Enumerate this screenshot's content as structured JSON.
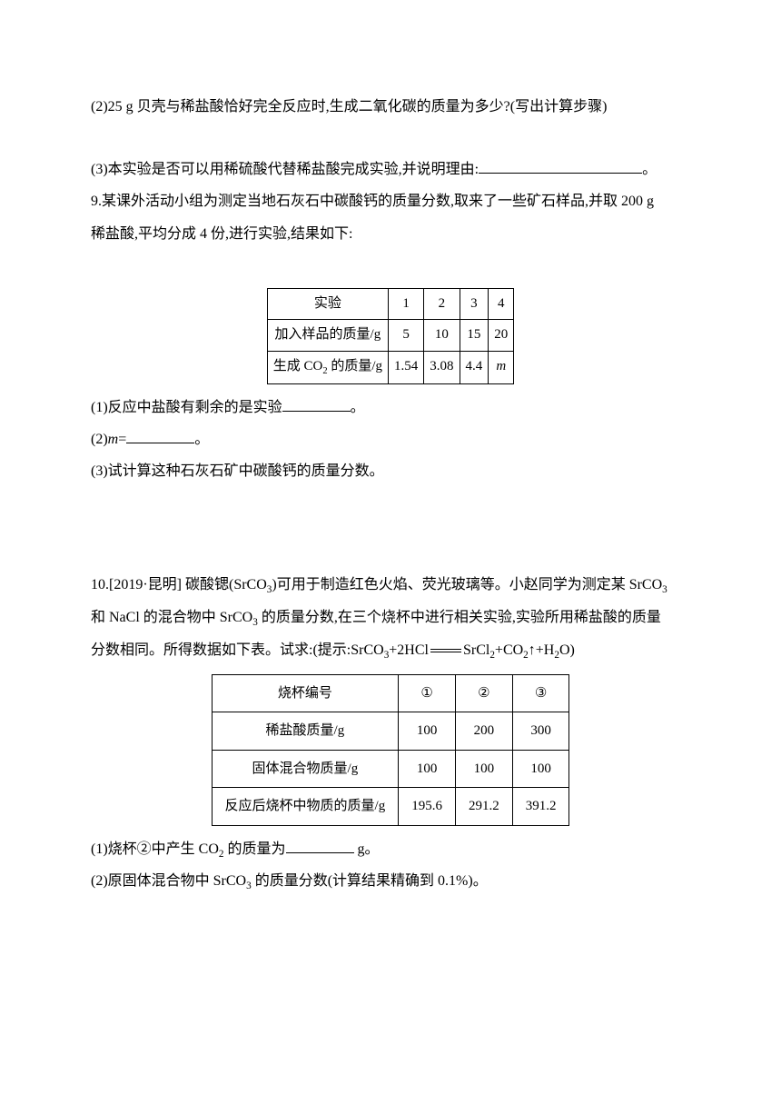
{
  "q8": {
    "p2": "(2)25 g 贝壳与稀盐酸恰好完全反应时,生成二氧化碳的质量为多少?(写出计算步骤)",
    "p3_a": "(3)本实验是否可以用稀硫酸代替稀盐酸完成实验,并说明理由:",
    "p3_b": "。"
  },
  "q9": {
    "intro_a": "9.某课外活动小组为测定当地石灰石中碳酸钙的质量分数,取来了一些矿石样品,并取 200 g",
    "intro_b": "稀盐酸,平均分成 4 份,进行实验,结果如下:",
    "table": {
      "r1": [
        "实验",
        "1",
        "2",
        "3",
        "4"
      ],
      "r2": [
        "加入样品的质量/g",
        "5",
        "10",
        "15",
        "20"
      ],
      "r3_label": "生成 CO",
      "r3_label2": " 的质量/g",
      "r3": [
        "1.54",
        "3.08",
        "4.4"
      ],
      "r3_m": "m"
    },
    "p1_a": "(1)反应中盐酸有剩余的是实验",
    "p1_b": "。",
    "p2_a": "(2)",
    "p2_m": "m",
    "p2_b": "=",
    "p2_c": "。",
    "p3": "(3)试计算这种石灰石矿中碳酸钙的质量分数。"
  },
  "q10": {
    "line1_a": "10.[2019·昆明]  碳酸锶(SrCO",
    "line1_b": ")可用于制造红色火焰、荧光玻璃等。小赵同学为测定某 SrCO",
    "line2_a": "和 NaCl 的混合物中 SrCO",
    "line2_b": " 的质量分数,在三个烧杯中进行相关实验,实验所用稀盐酸的质量",
    "line3_a": "分数相同。所得数据如下表。试求:(提示:SrCO",
    "line3_b": "+2HCl",
    "line3_c": "SrCl",
    "line3_d": "+CO",
    "line3_e": "↑+H",
    "line3_f": "O)",
    "table": {
      "h": [
        "烧杯编号",
        "①",
        "②",
        "③"
      ],
      "r1": [
        "稀盐酸质量/g",
        "100",
        "200",
        "300"
      ],
      "r2": [
        "固体混合物质量/g",
        "100",
        "100",
        "100"
      ],
      "r3": [
        "反应后烧杯中物质的质量/g",
        "195.6",
        "291.2",
        "391.2"
      ]
    },
    "p1_a": "(1)烧杯②中产生 CO",
    "p1_b": " 的质量为",
    "p1_c": " g。",
    "p2_a": "(2)原固体混合物中 SrCO",
    "p2_b": " 的质量分数(计算结果精确到 0.1%)。"
  }
}
